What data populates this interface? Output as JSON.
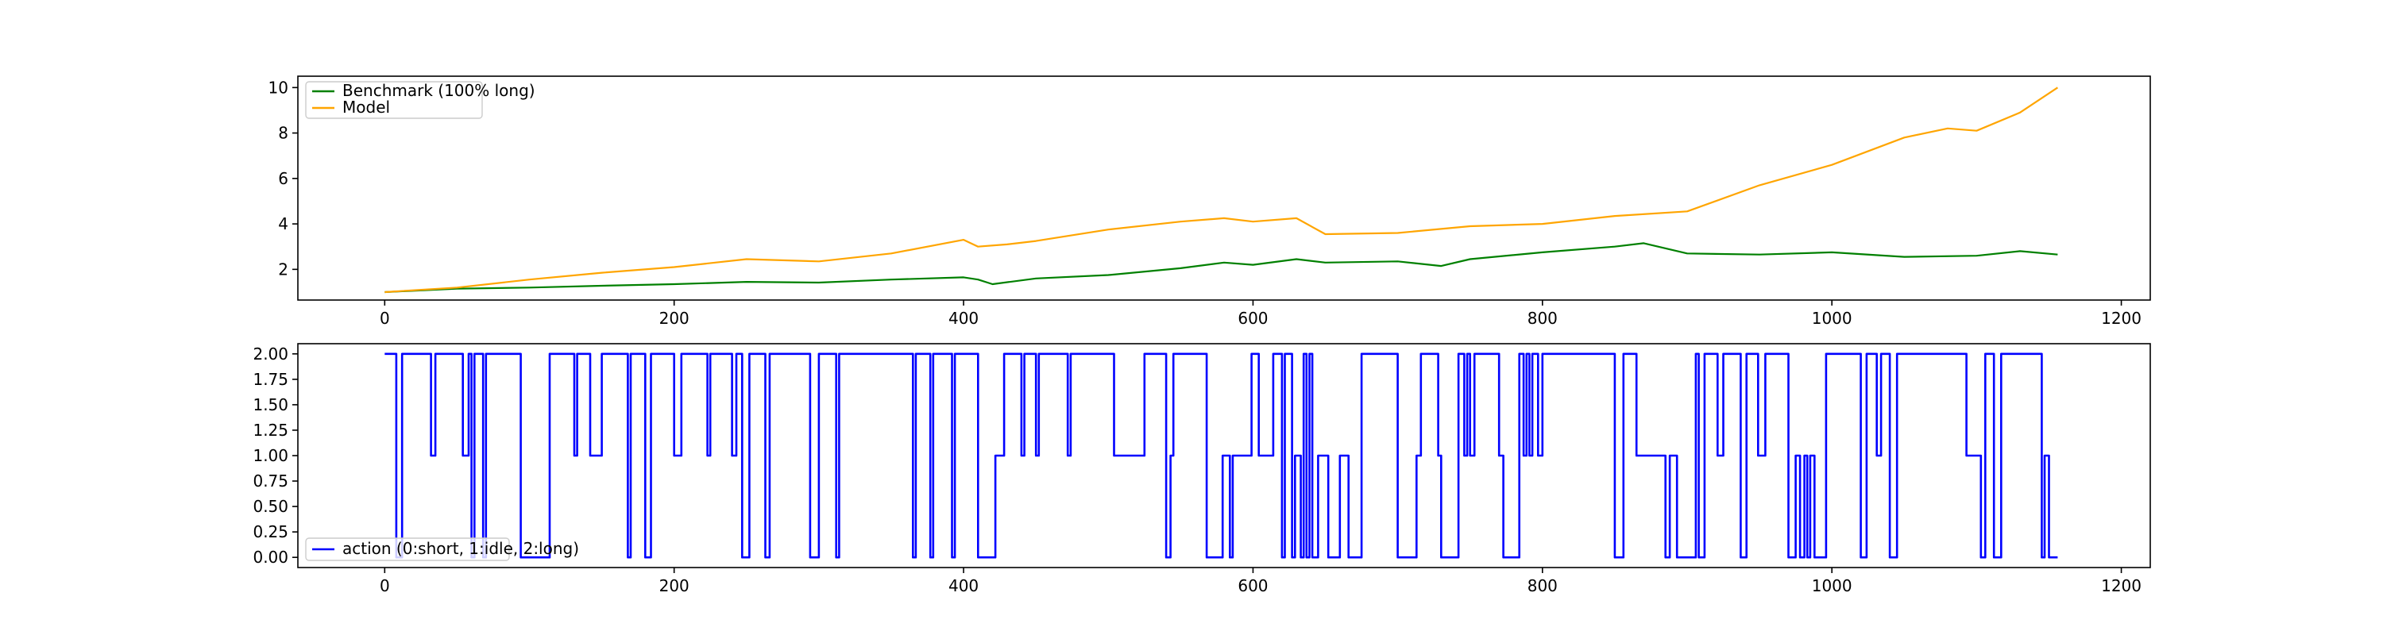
{
  "chart_data": [
    {
      "type": "line",
      "title": "",
      "xlabel": "",
      "ylabel": "",
      "xlim": [
        -60,
        1220
      ],
      "ylim": [
        0.65,
        10.5
      ],
      "xticks": [
        0,
        200,
        400,
        600,
        800,
        1000,
        1200
      ],
      "yticks": [
        2,
        4,
        6,
        8,
        10
      ],
      "ytick_labels": [
        "2",
        "4",
        "6",
        "8",
        "10"
      ],
      "xtick_labels": [
        "0",
        "200",
        "400",
        "600",
        "800",
        "1000",
        "1200"
      ],
      "grid": false,
      "legend": "upper left",
      "series": [
        {
          "name": "Benchmark (100% long)",
          "color": "#008000",
          "x": [
            0,
            50,
            100,
            150,
            200,
            250,
            300,
            350,
            400,
            410,
            420,
            450,
            500,
            550,
            580,
            600,
            630,
            650,
            700,
            730,
            750,
            800,
            850,
            870,
            900,
            950,
            1000,
            1050,
            1100,
            1130,
            1156
          ],
          "y": [
            1.0,
            1.15,
            1.2,
            1.28,
            1.35,
            1.45,
            1.42,
            1.55,
            1.65,
            1.55,
            1.35,
            1.6,
            1.75,
            2.05,
            2.3,
            2.2,
            2.45,
            2.3,
            2.35,
            2.15,
            2.45,
            2.75,
            3.0,
            3.15,
            2.7,
            2.65,
            2.75,
            2.55,
            2.6,
            2.8,
            2.65
          ]
        },
        {
          "name": "Model",
          "color": "#ffa500",
          "x": [
            0,
            50,
            100,
            150,
            200,
            250,
            300,
            350,
            400,
            410,
            430,
            450,
            500,
            550,
            580,
            600,
            630,
            650,
            700,
            750,
            800,
            850,
            900,
            950,
            1000,
            1050,
            1080,
            1100,
            1130,
            1156
          ],
          "y": [
            1.0,
            1.2,
            1.55,
            1.85,
            2.1,
            2.45,
            2.35,
            2.7,
            3.3,
            3.0,
            3.1,
            3.25,
            3.75,
            4.1,
            4.25,
            4.1,
            4.25,
            3.55,
            3.6,
            3.9,
            4.0,
            4.35,
            4.55,
            5.7,
            6.6,
            7.8,
            8.2,
            8.1,
            8.9,
            10.0
          ]
        }
      ]
    },
    {
      "type": "line",
      "title": "",
      "xlabel": "",
      "ylabel": "",
      "xlim": [
        -60,
        1220
      ],
      "ylim": [
        -0.1,
        2.1
      ],
      "xticks": [
        0,
        200,
        400,
        600,
        800,
        1000,
        1200
      ],
      "yticks": [
        0.0,
        0.25,
        0.5,
        0.75,
        1.0,
        1.25,
        1.5,
        1.75,
        2.0
      ],
      "ytick_labels": [
        "0.00",
        "0.25",
        "0.50",
        "0.75",
        "1.00",
        "1.25",
        "1.50",
        "1.75",
        "2.00"
      ],
      "xtick_labels": [
        "0",
        "200",
        "400",
        "600",
        "800",
        "1000",
        "1200"
      ],
      "grid": false,
      "legend": "lower left",
      "series": [
        {
          "name": "action (0:short, 1:idle, 2:long)",
          "color": "#0000ff",
          "step_runs": [
            [
              0,
              2
            ],
            [
              8,
              0
            ],
            [
              12,
              2
            ],
            [
              32,
              1
            ],
            [
              35,
              2
            ],
            [
              54,
              1
            ],
            [
              58,
              2
            ],
            [
              60,
              0
            ],
            [
              62,
              2
            ],
            [
              68,
              0
            ],
            [
              70,
              2
            ],
            [
              94,
              0
            ],
            [
              114,
              2
            ],
            [
              131,
              1
            ],
            [
              133,
              2
            ],
            [
              142,
              1
            ],
            [
              150,
              2
            ],
            [
              168,
              0
            ],
            [
              170,
              2
            ],
            [
              180,
              0
            ],
            [
              184,
              2
            ],
            [
              200,
              1
            ],
            [
              205,
              2
            ],
            [
              223,
              1
            ],
            [
              225,
              2
            ],
            [
              240,
              1
            ],
            [
              243,
              2
            ],
            [
              247,
              0
            ],
            [
              252,
              2
            ],
            [
              263,
              0
            ],
            [
              266,
              2
            ],
            [
              294,
              0
            ],
            [
              300,
              2
            ],
            [
              312,
              0
            ],
            [
              314,
              2
            ],
            [
              365,
              0
            ],
            [
              367,
              2
            ],
            [
              377,
              0
            ],
            [
              379,
              2
            ],
            [
              392,
              0
            ],
            [
              394,
              2
            ],
            [
              410,
              0
            ],
            [
              422,
              1
            ],
            [
              428,
              2
            ],
            [
              440,
              1
            ],
            [
              442,
              2
            ],
            [
              450,
              1
            ],
            [
              452,
              2
            ],
            [
              472,
              1
            ],
            [
              474,
              2
            ],
            [
              504,
              1
            ],
            [
              525,
              2
            ],
            [
              540,
              0
            ],
            [
              543,
              1
            ],
            [
              545,
              2
            ],
            [
              568,
              0
            ],
            [
              579,
              1
            ],
            [
              584,
              0
            ],
            [
              586,
              1
            ],
            [
              599,
              2
            ],
            [
              604,
              1
            ],
            [
              614,
              2
            ],
            [
              620,
              0
            ],
            [
              622,
              2
            ],
            [
              627,
              0
            ],
            [
              629,
              1
            ],
            [
              633,
              0
            ],
            [
              635,
              2
            ],
            [
              637,
              0
            ],
            [
              639,
              2
            ],
            [
              641,
              0
            ],
            [
              645,
              1
            ],
            [
              652,
              0
            ],
            [
              660,
              1
            ],
            [
              666,
              0
            ],
            [
              675,
              2
            ],
            [
              700,
              0
            ],
            [
              713,
              1
            ],
            [
              716,
              2
            ],
            [
              728,
              1
            ],
            [
              730,
              0
            ],
            [
              742,
              2
            ],
            [
              746,
              1
            ],
            [
              748,
              2
            ],
            [
              750,
              1
            ],
            [
              753,
              2
            ],
            [
              770,
              1
            ],
            [
              773,
              0
            ],
            [
              784,
              2
            ],
            [
              787,
              1
            ],
            [
              789,
              2
            ],
            [
              791,
              1
            ],
            [
              793,
              2
            ],
            [
              797,
              1
            ],
            [
              800,
              2
            ],
            [
              850,
              0
            ],
            [
              856,
              2
            ],
            [
              865,
              1
            ],
            [
              885,
              0
            ],
            [
              888,
              1
            ],
            [
              893,
              0
            ],
            [
              906,
              2
            ],
            [
              908,
              0
            ],
            [
              912,
              2
            ],
            [
              921,
              1
            ],
            [
              925,
              2
            ],
            [
              937,
              0
            ],
            [
              941,
              2
            ],
            [
              949,
              1
            ],
            [
              954,
              2
            ],
            [
              970,
              0
            ],
            [
              975,
              1
            ],
            [
              978,
              0
            ],
            [
              981,
              1
            ],
            [
              983,
              0
            ],
            [
              985,
              1
            ],
            [
              988,
              0
            ],
            [
              996,
              2
            ],
            [
              1020,
              0
            ],
            [
              1024,
              2
            ],
            [
              1031,
              1
            ],
            [
              1034,
              2
            ],
            [
              1040,
              0
            ],
            [
              1045,
              2
            ],
            [
              1093,
              1
            ],
            [
              1103,
              0
            ],
            [
              1106,
              2
            ],
            [
              1112,
              0
            ],
            [
              1117,
              2
            ],
            [
              1145,
              0
            ],
            [
              1147,
              1
            ],
            [
              1150,
              0
            ],
            [
              1156,
              0
            ]
          ]
        }
      ]
    }
  ]
}
